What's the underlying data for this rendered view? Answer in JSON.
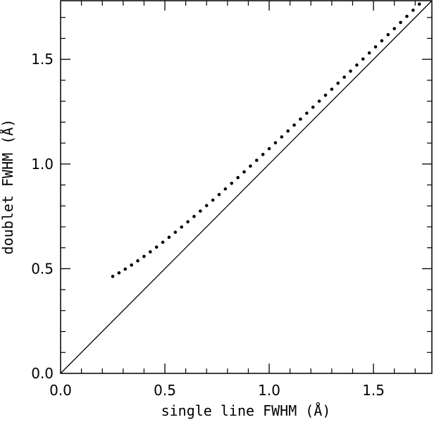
{
  "chart_data": {
    "type": "scatter",
    "xlabel": "single line FWHM (Å)",
    "ylabel": "doublet FWHM (Å)",
    "xlim": [
      0.0,
      1.78
    ],
    "ylim": [
      0.0,
      1.78
    ],
    "xticks": [
      {
        "value": 0.0,
        "label": "0.0"
      },
      {
        "value": 0.5,
        "label": "0.5"
      },
      {
        "value": 1.0,
        "label": "1.0"
      },
      {
        "value": 1.5,
        "label": "1.5"
      }
    ],
    "yticks": [
      {
        "value": 0.0,
        "label": "0.0"
      },
      {
        "value": 0.5,
        "label": "0.5"
      },
      {
        "value": 1.0,
        "label": "1.0"
      },
      {
        "value": 1.5,
        "label": "1.5"
      }
    ],
    "minor_tick_step": 0.1,
    "grid": false,
    "reference_line": {
      "from": [
        0.0,
        0.0
      ],
      "to": [
        1.78,
        1.78
      ]
    },
    "points": {
      "x_start": 0.25,
      "x_end": 1.75,
      "count": 51,
      "curve": "sqrt(x^2 + 0.39^2)"
    }
  }
}
